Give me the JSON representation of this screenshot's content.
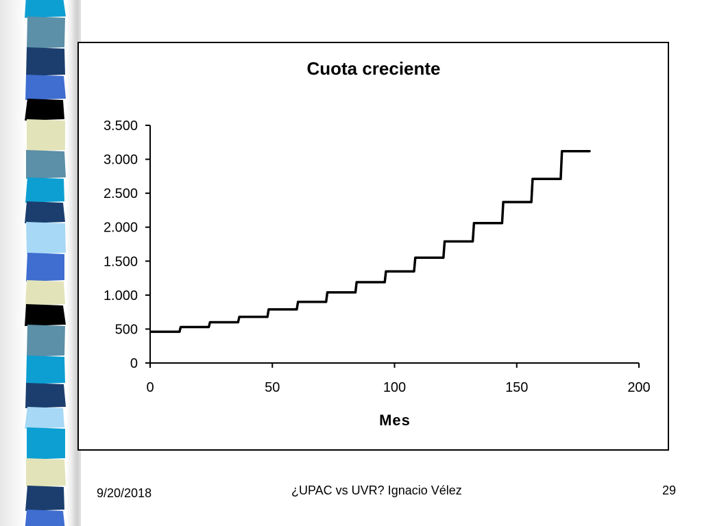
{
  "slide": {
    "date": "9/20/2018",
    "footer_title": "¿UPAC vs UVR? Ignacio Vélez",
    "page_number": "29"
  },
  "colors": {
    "stripes": [
      "#0d9fd2",
      "#5c8fa8",
      "#1b3e6e",
      "#3f6dd0",
      "#000000",
      "#e2e3b9",
      "#a7d8f5",
      "#0e5e8f"
    ]
  },
  "chart_data": {
    "type": "line",
    "title": "Cuota creciente",
    "xlabel": "Mes",
    "ylabel": "",
    "xlim": [
      0,
      200
    ],
    "ylim": [
      0,
      3500
    ],
    "x_ticks": [
      0,
      50,
      100,
      150,
      200
    ],
    "x_tick_labels": [
      "0",
      "50",
      "100",
      "150",
      "200"
    ],
    "y_ticks": [
      0,
      500,
      1000,
      1500,
      2000,
      2500,
      3000,
      3500
    ],
    "y_tick_labels": [
      "0",
      "500",
      "1.000",
      "1.500",
      "2.000",
      "2.500",
      "3.000",
      "3.500"
    ],
    "grid": false,
    "legend": "none",
    "series": [
      {
        "x": [
          0,
          12,
          12.5,
          24,
          24.5,
          36,
          36.5,
          48,
          48.5,
          60,
          60.5,
          72,
          72.5,
          84,
          84.5,
          96,
          96.5,
          108,
          108.5,
          120,
          120.5,
          132,
          132.5,
          144,
          144.5,
          156,
          156.5,
          168,
          168.5,
          180
        ],
        "y": [
          460,
          460,
          530,
          530,
          600,
          600,
          680,
          680,
          790,
          790,
          900,
          900,
          1040,
          1040,
          1190,
          1190,
          1350,
          1350,
          1550,
          1550,
          1790,
          1790,
          2060,
          2060,
          2370,
          2370,
          2710,
          2710,
          3120,
          3120
        ]
      }
    ]
  }
}
